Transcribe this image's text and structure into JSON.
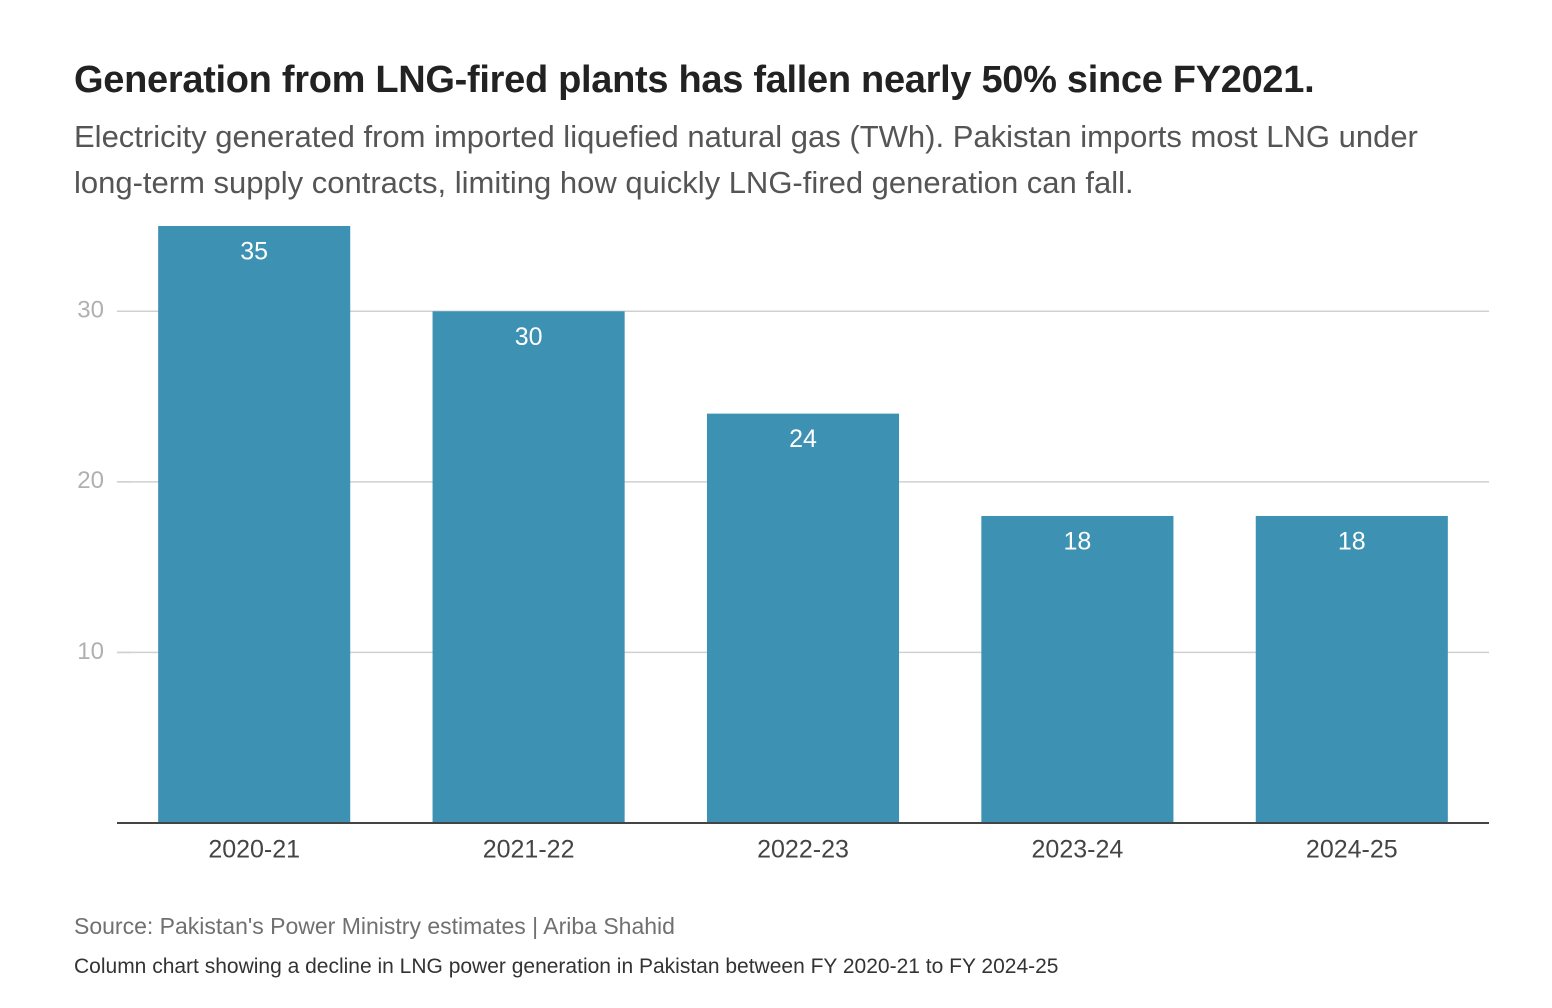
{
  "title": "Generation from LNG-fired plants has fallen nearly 50% since FY2021.",
  "subtitle": "Electricity generated from imported liquefied natural gas (TWh). Pakistan imports most LNG under long-term supply contracts, limiting how quickly LNG-fired generation can fall.",
  "source": "Source: Pakistan's Power Ministry estimates | Ariba Shahid",
  "caption": "Column chart showing a decline in LNG power generation in Pakistan between FY 2020-21 to FY 2024-25",
  "colors": {
    "bar": "#3d91b2",
    "bar_label": "#ffffff",
    "grid": "#d0d0d0",
    "axis": "#444444",
    "tick_label": "#b0b0b0",
    "category_label": "#444444"
  },
  "chart_data": {
    "type": "bar",
    "title": "Generation from LNG-fired plants has fallen nearly 50% since FY2021.",
    "xlabel": "",
    "ylabel": "TWh",
    "categories": [
      "2020-21",
      "2021-22",
      "2022-23",
      "2023-24",
      "2024-25"
    ],
    "values": [
      35,
      30,
      24,
      18,
      18
    ],
    "data_labels": [
      "35",
      "30",
      "24",
      "18",
      "18"
    ],
    "yticks": [
      10,
      20,
      30
    ],
    "ylim": [
      0,
      35
    ],
    "grid": true,
    "legend": "none"
  }
}
